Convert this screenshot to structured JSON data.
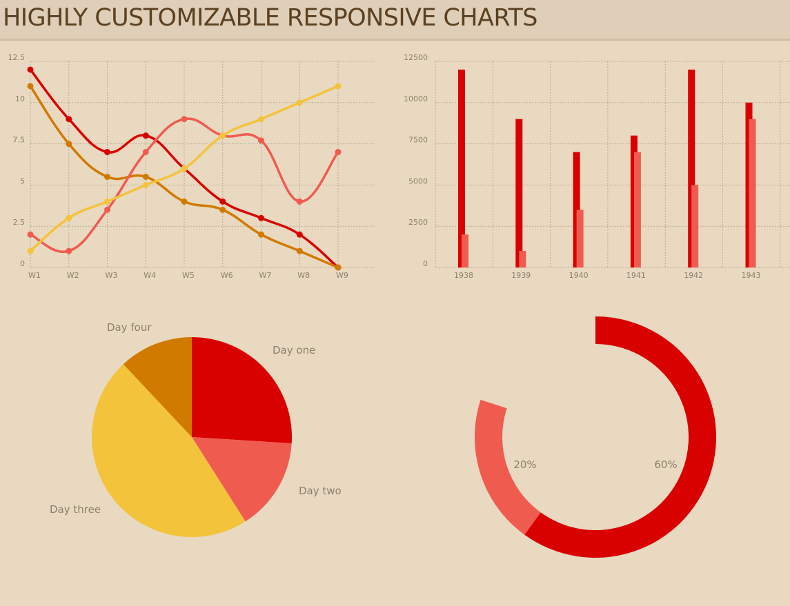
{
  "header": {
    "title": "HIGHLY CUSTOMIZABLE RESPONSIVE CHARTS"
  },
  "colors": {
    "red": "#d90000",
    "orange": "#d17a00",
    "salmon": "#f05b50",
    "yellow": "#f4c33c",
    "grid": "#b9aa95",
    "text": "#8d7f6e"
  },
  "chart_data": [
    {
      "type": "line",
      "categories": [
        "W1",
        "W2",
        "W3",
        "W4",
        "W5",
        "W6",
        "W7",
        "W8",
        "W9"
      ],
      "yticks": [
        "0",
        "2.5",
        "5",
        "7.5",
        "10",
        "12.5"
      ],
      "ylim": [
        0,
        12.5
      ],
      "grid": true,
      "series": [
        {
          "color": "#d90000",
          "values": [
            12,
            9,
            7,
            8,
            6,
            4,
            3,
            2,
            0
          ]
        },
        {
          "color": "#d17a00",
          "values": [
            11,
            7.5,
            5.5,
            5.5,
            4,
            3.5,
            2,
            1,
            0
          ]
        },
        {
          "color": "#f05b50",
          "values": [
            2,
            1,
            3.5,
            7,
            9,
            8,
            7.7,
            4,
            7
          ]
        },
        {
          "color": "#f4c33c",
          "values": [
            1,
            3,
            4,
            5,
            6,
            8,
            9,
            10,
            11
          ]
        }
      ]
    },
    {
      "type": "bar",
      "categories": [
        "1938",
        "1939",
        "1940",
        "1941",
        "1942",
        "1943"
      ],
      "yticks": [
        "0",
        "2500",
        "5000",
        "7500",
        "10000",
        "12500"
      ],
      "ylim": [
        0,
        12500
      ],
      "grid": true,
      "series": [
        {
          "color": "#d90000",
          "values": [
            12000,
            9000,
            7000,
            8000,
            12000,
            10000
          ]
        },
        {
          "color": "#f05b50",
          "values": [
            2000,
            1000,
            3500,
            7000,
            5000,
            9000
          ]
        }
      ]
    },
    {
      "type": "pie",
      "labels": [
        "Day one",
        "Day two",
        "Day three",
        "Day four"
      ],
      "values": [
        26,
        15,
        47,
        12
      ],
      "colors": [
        "#d90000",
        "#f05b50",
        "#f4c33c",
        "#d17a00"
      ]
    },
    {
      "type": "pie",
      "variant": "doughnut",
      "labels": [
        "60%",
        "20%"
      ],
      "values": [
        60,
        20
      ],
      "colors": [
        "#d90000",
        "#f05b50"
      ]
    }
  ]
}
